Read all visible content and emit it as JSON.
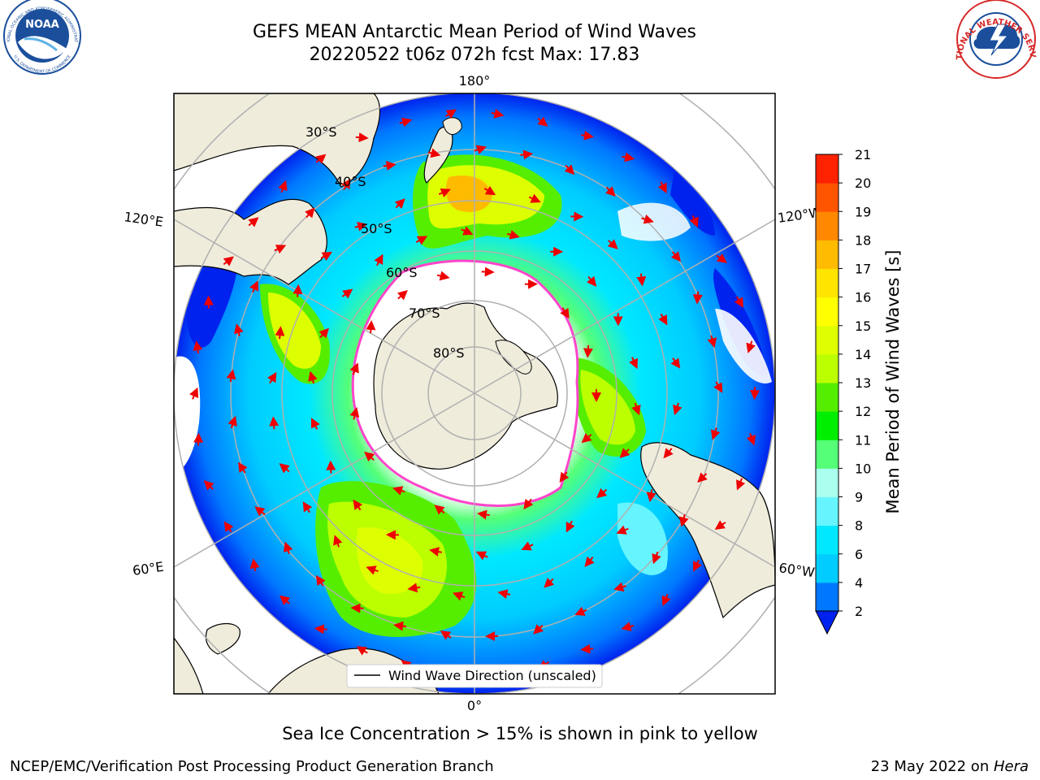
{
  "title": {
    "line1": "GEFS MEAN Antarctic Mean Period of Wind Waves",
    "line2": "20220522 t06z 072h fcst   Max: 17.83"
  },
  "map": {
    "longitude_labels": {
      "top": "180°",
      "bottom": "0°",
      "left_upper": "120°E",
      "right_upper": "120°W",
      "left_lower": "60°E",
      "right_lower": "60°W"
    },
    "latitude_labels": [
      "30°S",
      "40°S",
      "50°S",
      "60°S",
      "70°S",
      "80°S"
    ],
    "legend_label": "Wind Wave Direction (unscaled)",
    "colors": {
      "land": "#efecdc",
      "ice_edge": "#ff44cc",
      "arrows": "#ee0000",
      "gridlines": "#b0b0b0"
    }
  },
  "colorbar": {
    "title": "Mean Period of Wind Waves [s]",
    "ticks": [
      "2",
      "4",
      "6",
      "8",
      "9",
      "10",
      "11",
      "12",
      "13",
      "14",
      "15",
      "16",
      "17",
      "18",
      "19",
      "20",
      "21"
    ],
    "colors": [
      "#0022ee",
      "#0077ff",
      "#00ccff",
      "#00e8ff",
      "#66f5ff",
      "#aaffee",
      "#55ff77",
      "#00ee00",
      "#55ee00",
      "#bbff00",
      "#ddff00",
      "#ffff00",
      "#ffe400",
      "#ffbb00",
      "#ff8800",
      "#ff5500",
      "#ff2200",
      "#ff0000"
    ]
  },
  "caption": "Sea Ice Concentration > 15% is shown in pink to yellow",
  "footer": {
    "left": "NCEP/EMC/Verification Post Processing Product Generation Branch",
    "right_prefix": "23 May 2022 on ",
    "right_italic": "Hera"
  },
  "logos": {
    "left": "NOAA",
    "left_ring_top": "NATIONAL OCEANIC AND ATMOSPHERIC ADMINISTRATION",
    "left_ring_bottom": "U.S. DEPARTMENT OF COMMERCE",
    "right_ring": "NATIONAL WEATHER SERVICE"
  }
}
